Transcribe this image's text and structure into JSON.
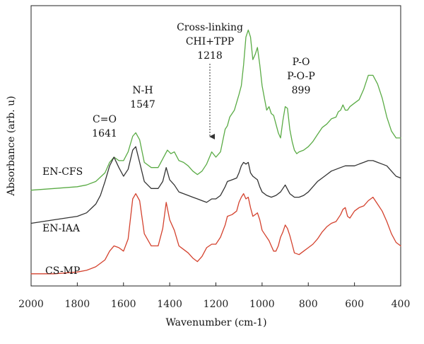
{
  "chart_data": {
    "type": "line",
    "xlabel": "Wavenumber (cm-1)",
    "ylabel": "Absorbance (arb. u)",
    "xlim": [
      2000,
      400
    ],
    "x_reversed": true,
    "xticks": [
      2000,
      1800,
      1600,
      1400,
      1200,
      1000,
      800,
      600,
      400
    ],
    "y_ticks_shown": false,
    "grid": false,
    "legend": "none",
    "series": [
      {
        "name": "EN-CFS",
        "color": "#5aab45",
        "x": [
          2000,
          1900,
          1800,
          1760,
          1720,
          1680,
          1660,
          1641,
          1620,
          1600,
          1580,
          1560,
          1547,
          1530,
          1510,
          1480,
          1450,
          1430,
          1410,
          1395,
          1380,
          1360,
          1340,
          1320,
          1300,
          1280,
          1260,
          1240,
          1218,
          1200,
          1180,
          1160,
          1150,
          1140,
          1120,
          1100,
          1090,
          1080,
          1070,
          1060,
          1050,
          1040,
          1030,
          1020,
          1010,
          1000,
          990,
          980,
          970,
          960,
          950,
          940,
          930,
          920,
          910,
          900,
          890,
          880,
          870,
          860,
          850,
          840,
          820,
          800,
          780,
          760,
          740,
          720,
          700,
          680,
          670,
          660,
          650,
          640,
          630,
          620,
          600,
          580,
          560,
          540,
          520,
          500,
          480,
          460,
          440,
          420,
          400
        ],
        "y": [
          0.5,
          0.51,
          0.52,
          0.53,
          0.55,
          0.6,
          0.66,
          0.69,
          0.67,
          0.67,
          0.72,
          0.81,
          0.83,
          0.79,
          0.66,
          0.63,
          0.63,
          0.68,
          0.73,
          0.71,
          0.72,
          0.67,
          0.66,
          0.64,
          0.61,
          0.59,
          0.61,
          0.65,
          0.72,
          0.69,
          0.72,
          0.85,
          0.87,
          0.92,
          0.96,
          1.05,
          1.1,
          1.22,
          1.38,
          1.42,
          1.38,
          1.25,
          1.28,
          1.32,
          1.22,
          1.1,
          1.03,
          0.96,
          0.98,
          0.94,
          0.93,
          0.88,
          0.83,
          0.8,
          0.9,
          0.98,
          0.97,
          0.85,
          0.78,
          0.73,
          0.71,
          0.72,
          0.73,
          0.75,
          0.78,
          0.82,
          0.86,
          0.88,
          0.91,
          0.92,
          0.95,
          0.96,
          0.99,
          0.96,
          0.96,
          0.98,
          1.0,
          1.02,
          1.08,
          1.16,
          1.16,
          1.11,
          1.03,
          0.92,
          0.84,
          0.8,
          0.8
        ]
      },
      {
        "name": "EN-IAA",
        "color": "#333333",
        "x": [
          2000,
          1900,
          1800,
          1760,
          1720,
          1700,
          1680,
          1660,
          1641,
          1620,
          1600,
          1580,
          1560,
          1547,
          1530,
          1510,
          1480,
          1450,
          1430,
          1415,
          1400,
          1380,
          1360,
          1340,
          1320,
          1300,
          1280,
          1260,
          1240,
          1218,
          1200,
          1180,
          1160,
          1150,
          1130,
          1110,
          1100,
          1090,
          1080,
          1070,
          1060,
          1050,
          1040,
          1030,
          1020,
          1010,
          1000,
          980,
          960,
          940,
          920,
          900,
          880,
          860,
          840,
          820,
          800,
          780,
          760,
          740,
          720,
          700,
          680,
          660,
          640,
          620,
          600,
          580,
          560,
          540,
          520,
          500,
          480,
          460,
          440,
          420,
          400
        ],
        "y": [
          0.31,
          0.33,
          0.35,
          0.37,
          0.42,
          0.47,
          0.55,
          0.64,
          0.69,
          0.63,
          0.58,
          0.62,
          0.73,
          0.75,
          0.66,
          0.55,
          0.51,
          0.51,
          0.55,
          0.63,
          0.56,
          0.53,
          0.49,
          0.48,
          0.47,
          0.46,
          0.45,
          0.44,
          0.43,
          0.45,
          0.45,
          0.47,
          0.52,
          0.55,
          0.56,
          0.57,
          0.6,
          0.64,
          0.66,
          0.65,
          0.66,
          0.6,
          0.58,
          0.57,
          0.56,
          0.52,
          0.49,
          0.47,
          0.46,
          0.47,
          0.49,
          0.53,
          0.48,
          0.46,
          0.46,
          0.47,
          0.49,
          0.52,
          0.55,
          0.57,
          0.59,
          0.61,
          0.62,
          0.63,
          0.64,
          0.64,
          0.64,
          0.65,
          0.66,
          0.67,
          0.67,
          0.66,
          0.65,
          0.64,
          0.61,
          0.58,
          0.57
        ]
      },
      {
        "name": "CS-MP",
        "color": "#d4422e",
        "x": [
          2000,
          1900,
          1800,
          1760,
          1720,
          1700,
          1680,
          1660,
          1641,
          1620,
          1600,
          1580,
          1560,
          1547,
          1530,
          1510,
          1480,
          1450,
          1430,
          1415,
          1400,
          1380,
          1360,
          1340,
          1320,
          1300,
          1280,
          1260,
          1240,
          1218,
          1200,
          1180,
          1160,
          1150,
          1130,
          1110,
          1100,
          1090,
          1080,
          1070,
          1060,
          1050,
          1040,
          1030,
          1020,
          1010,
          1000,
          990,
          980,
          970,
          960,
          950,
          940,
          930,
          920,
          910,
          900,
          890,
          880,
          870,
          860,
          840,
          820,
          800,
          780,
          760,
          740,
          720,
          700,
          680,
          660,
          650,
          640,
          630,
          620,
          600,
          580,
          560,
          540,
          520,
          500,
          480,
          460,
          440,
          420,
          400
        ],
        "y": [
          0.02,
          0.02,
          0.03,
          0.04,
          0.06,
          0.08,
          0.1,
          0.15,
          0.18,
          0.17,
          0.15,
          0.22,
          0.45,
          0.48,
          0.44,
          0.25,
          0.18,
          0.18,
          0.28,
          0.43,
          0.33,
          0.27,
          0.18,
          0.16,
          0.14,
          0.11,
          0.09,
          0.12,
          0.17,
          0.19,
          0.19,
          0.23,
          0.3,
          0.35,
          0.36,
          0.38,
          0.43,
          0.46,
          0.48,
          0.45,
          0.46,
          0.4,
          0.35,
          0.36,
          0.37,
          0.33,
          0.27,
          0.25,
          0.23,
          0.21,
          0.18,
          0.15,
          0.15,
          0.18,
          0.23,
          0.26,
          0.3,
          0.28,
          0.24,
          0.19,
          0.14,
          0.13,
          0.15,
          0.17,
          0.19,
          0.22,
          0.26,
          0.29,
          0.31,
          0.32,
          0.36,
          0.39,
          0.4,
          0.35,
          0.34,
          0.38,
          0.4,
          0.41,
          0.44,
          0.46,
          0.42,
          0.38,
          0.32,
          0.25,
          0.2,
          0.18
        ]
      }
    ],
    "series_labels": [
      {
        "text": "EN-CFS",
        "series": 0
      },
      {
        "text": "EN-IAA",
        "series": 1
      },
      {
        "text": "CS-MP",
        "series": 2
      }
    ],
    "annotations": [
      {
        "lines": [
          "C=O",
          "1641"
        ]
      },
      {
        "lines": [
          "N-H",
          "1547"
        ]
      },
      {
        "lines": [
          "Cross-linking",
          "CHI+TPP",
          "1218"
        ],
        "arrow_to_x": 1218
      },
      {
        "lines": [
          "P-O",
          "P-O-P",
          "899"
        ]
      }
    ]
  }
}
